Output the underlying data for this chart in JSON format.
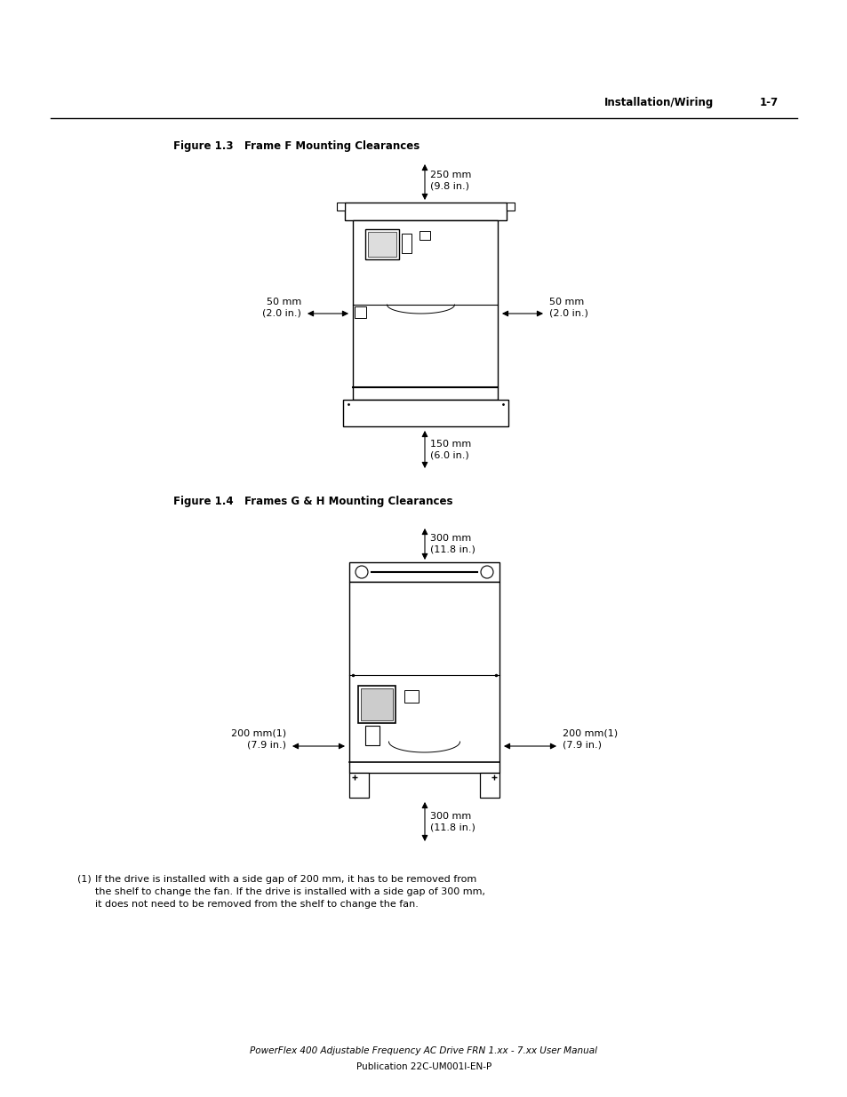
{
  "bg_color": "#ffffff",
  "header_text": "Installation/Wiring",
  "header_page": "1-7",
  "fig1_title": "Figure 1.3   Frame F Mounting Clearances",
  "fig2_title": "Figure 1.4   Frames G & H Mounting Clearances",
  "fig1_top_label": "250 mm\n(9.8 in.)",
  "fig1_bottom_label": "150 mm\n(6.0 in.)",
  "fig1_left_label": "50 mm\n(2.0 in.)",
  "fig1_right_label": "50 mm\n(2.0 in.)",
  "fig2_top_label": "300 mm\n(11.8 in.)",
  "fig2_bottom_label": "300 mm\n(11.8 in.)",
  "fig2_left_label": "200 mm(1)\n(7.9 in.)",
  "fig2_right_label": "200 mm(1)\n(7.9 in.)",
  "footnote_num": "(1)",
  "footnote_text": "If the drive is installed with a side gap of 200 mm, it has to be removed from\nthe shelf to change the fan. If the drive is installed with a side gap of 300 mm,\nit does not need to be removed from the shelf to change the fan.",
  "footer_line1": "PowerFlex 400 Adjustable Frequency AC Drive FRN 1.xx - 7.xx User Manual",
  "footer_line2": "Publication 22C-UM001I-EN-P"
}
